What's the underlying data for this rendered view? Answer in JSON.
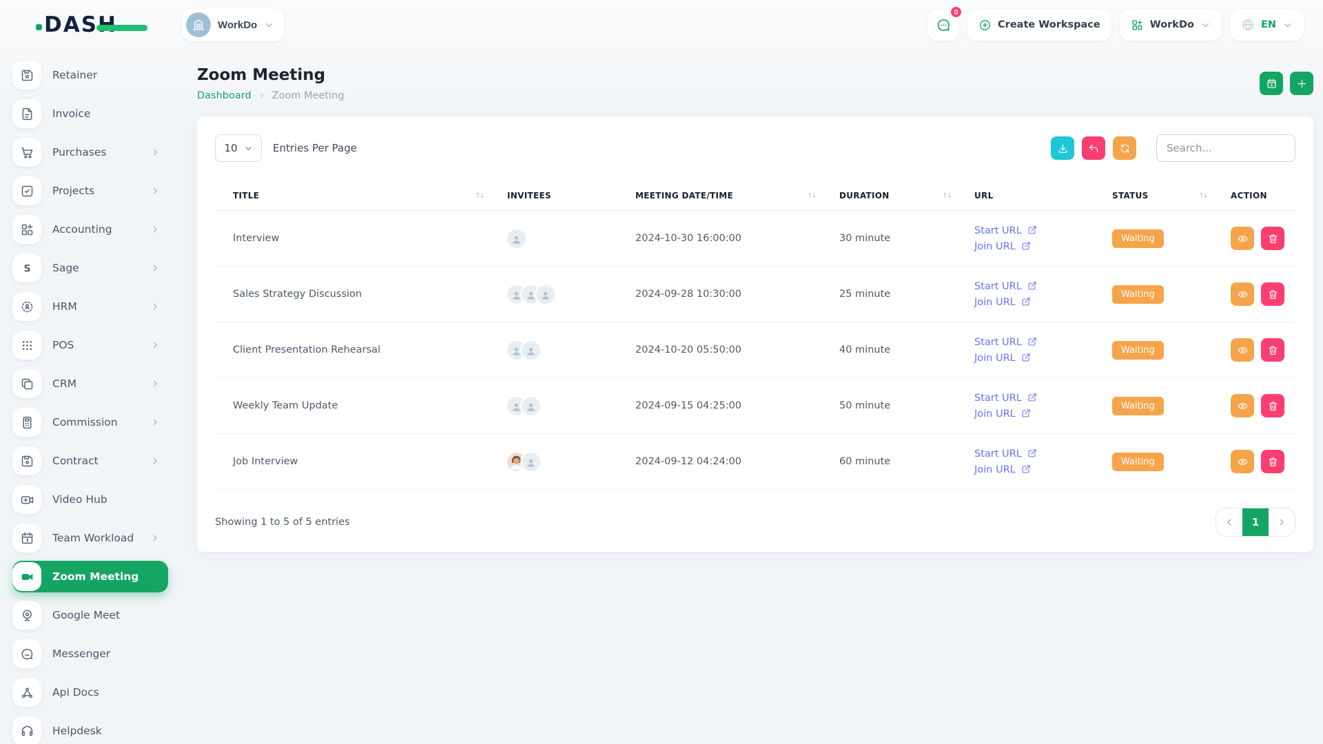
{
  "brand": {
    "logo_text": "DASH"
  },
  "colors": {
    "primary": "#14a563",
    "pink": "#fb3e70",
    "orange": "#f6a44a",
    "teal": "#1ec6d7",
    "link": "#6571ff"
  },
  "topbar": {
    "workspace_pill": {
      "label": "WorkDo",
      "icon": "building-icon"
    },
    "messages": {
      "icon": "chat-bubble-icon",
      "badge": "0"
    },
    "create_workspace": {
      "label": "Create Workspace",
      "icon": "plus-circle-icon"
    },
    "workspace_dropdown": {
      "label": "WorkDo",
      "icon": "grid-plus-icon"
    },
    "language": {
      "label": "EN",
      "icon": "globe-icon"
    }
  },
  "sidebar": {
    "items": [
      {
        "label": "Retainer",
        "icon": "floppy-disk-icon",
        "has_submenu": false,
        "active": false
      },
      {
        "label": "Invoice",
        "icon": "invoice-file-icon",
        "has_submenu": false,
        "active": false
      },
      {
        "label": "Purchases",
        "icon": "shopping-cart-icon",
        "has_submenu": true,
        "active": false
      },
      {
        "label": "Projects",
        "icon": "check-square-icon",
        "has_submenu": true,
        "active": false
      },
      {
        "label": "Accounting",
        "icon": "grid-plus-icon",
        "has_submenu": true,
        "active": false
      },
      {
        "label": "Sage",
        "icon": "sage-s-icon",
        "has_submenu": true,
        "active": false
      },
      {
        "label": "HRM",
        "icon": "target-user-icon",
        "has_submenu": true,
        "active": false
      },
      {
        "label": "POS",
        "icon": "dots-grid-icon",
        "has_submenu": true,
        "active": false
      },
      {
        "label": "CRM",
        "icon": "overlap-squares-icon",
        "has_submenu": true,
        "active": false
      },
      {
        "label": "Commission",
        "icon": "calculator-icon",
        "has_submenu": true,
        "active": false
      },
      {
        "label": "Contract",
        "icon": "floppy-disk-icon",
        "has_submenu": true,
        "active": false
      },
      {
        "label": "Video Hub",
        "icon": "video-plus-icon",
        "has_submenu": false,
        "active": false
      },
      {
        "label": "Team Workload",
        "icon": "calendar-icon",
        "has_submenu": true,
        "active": false
      },
      {
        "label": "Zoom Meeting",
        "icon": "video-camera-icon",
        "has_submenu": false,
        "active": true
      },
      {
        "label": "Google Meet",
        "icon": "webcam-icon",
        "has_submenu": false,
        "active": false
      },
      {
        "label": "Messenger",
        "icon": "chat-round-icon",
        "has_submenu": false,
        "active": false
      },
      {
        "label": "Api Docs",
        "icon": "share-nodes-icon",
        "has_submenu": false,
        "active": false
      },
      {
        "label": "Helpdesk",
        "icon": "headset-icon",
        "has_submenu": false,
        "active": false
      }
    ]
  },
  "page": {
    "title": "Zoom Meeting",
    "breadcrumb": {
      "home": "Dashboard",
      "current": "Zoom Meeting"
    }
  },
  "table": {
    "entries_select_value": "10",
    "entries_label": "Entries Per Page",
    "search_placeholder": "Search...",
    "columns": [
      {
        "label": "TITLE",
        "sortable": true
      },
      {
        "label": "INVITEES",
        "sortable": false
      },
      {
        "label": "MEETING DATE/TIME",
        "sortable": true
      },
      {
        "label": "DURATION",
        "sortable": true
      },
      {
        "label": "URL",
        "sortable": false
      },
      {
        "label": "STATUS",
        "sortable": true
      },
      {
        "label": "ACTION",
        "sortable": false
      }
    ],
    "rows": [
      {
        "title": "Interview",
        "invitees": [
          "placeholder"
        ],
        "datetime": "2024-10-30 16:00:00",
        "duration": "30 minute",
        "start_url_label": "Start URL",
        "join_url_label": "Join URL",
        "status": "Waiting"
      },
      {
        "title": "Sales Strategy Discussion",
        "invitees": [
          "placeholder",
          "placeholder",
          "placeholder"
        ],
        "datetime": "2024-09-28 10:30:00",
        "duration": "25 minute",
        "start_url_label": "Start URL",
        "join_url_label": "Join URL",
        "status": "Waiting"
      },
      {
        "title": "Client Presentation Rehearsal",
        "invitees": [
          "placeholder",
          "placeholder"
        ],
        "datetime": "2024-10-20 05:50:00",
        "duration": "40 minute",
        "start_url_label": "Start URL",
        "join_url_label": "Join URL",
        "status": "Waiting"
      },
      {
        "title": "Weekly Team Update",
        "invitees": [
          "placeholder",
          "placeholder"
        ],
        "datetime": "2024-09-15 04:25:00",
        "duration": "50 minute",
        "start_url_label": "Start URL",
        "join_url_label": "Join URL",
        "status": "Waiting"
      },
      {
        "title": "Job Interview",
        "invitees": [
          "photo",
          "placeholder"
        ],
        "datetime": "2024-09-12 04:24:00",
        "duration": "60 minute",
        "start_url_label": "Start URL",
        "join_url_label": "Join URL",
        "status": "Waiting"
      }
    ],
    "footer": {
      "showing": "Showing 1 to 5 of 5 entries",
      "page": "1"
    }
  }
}
